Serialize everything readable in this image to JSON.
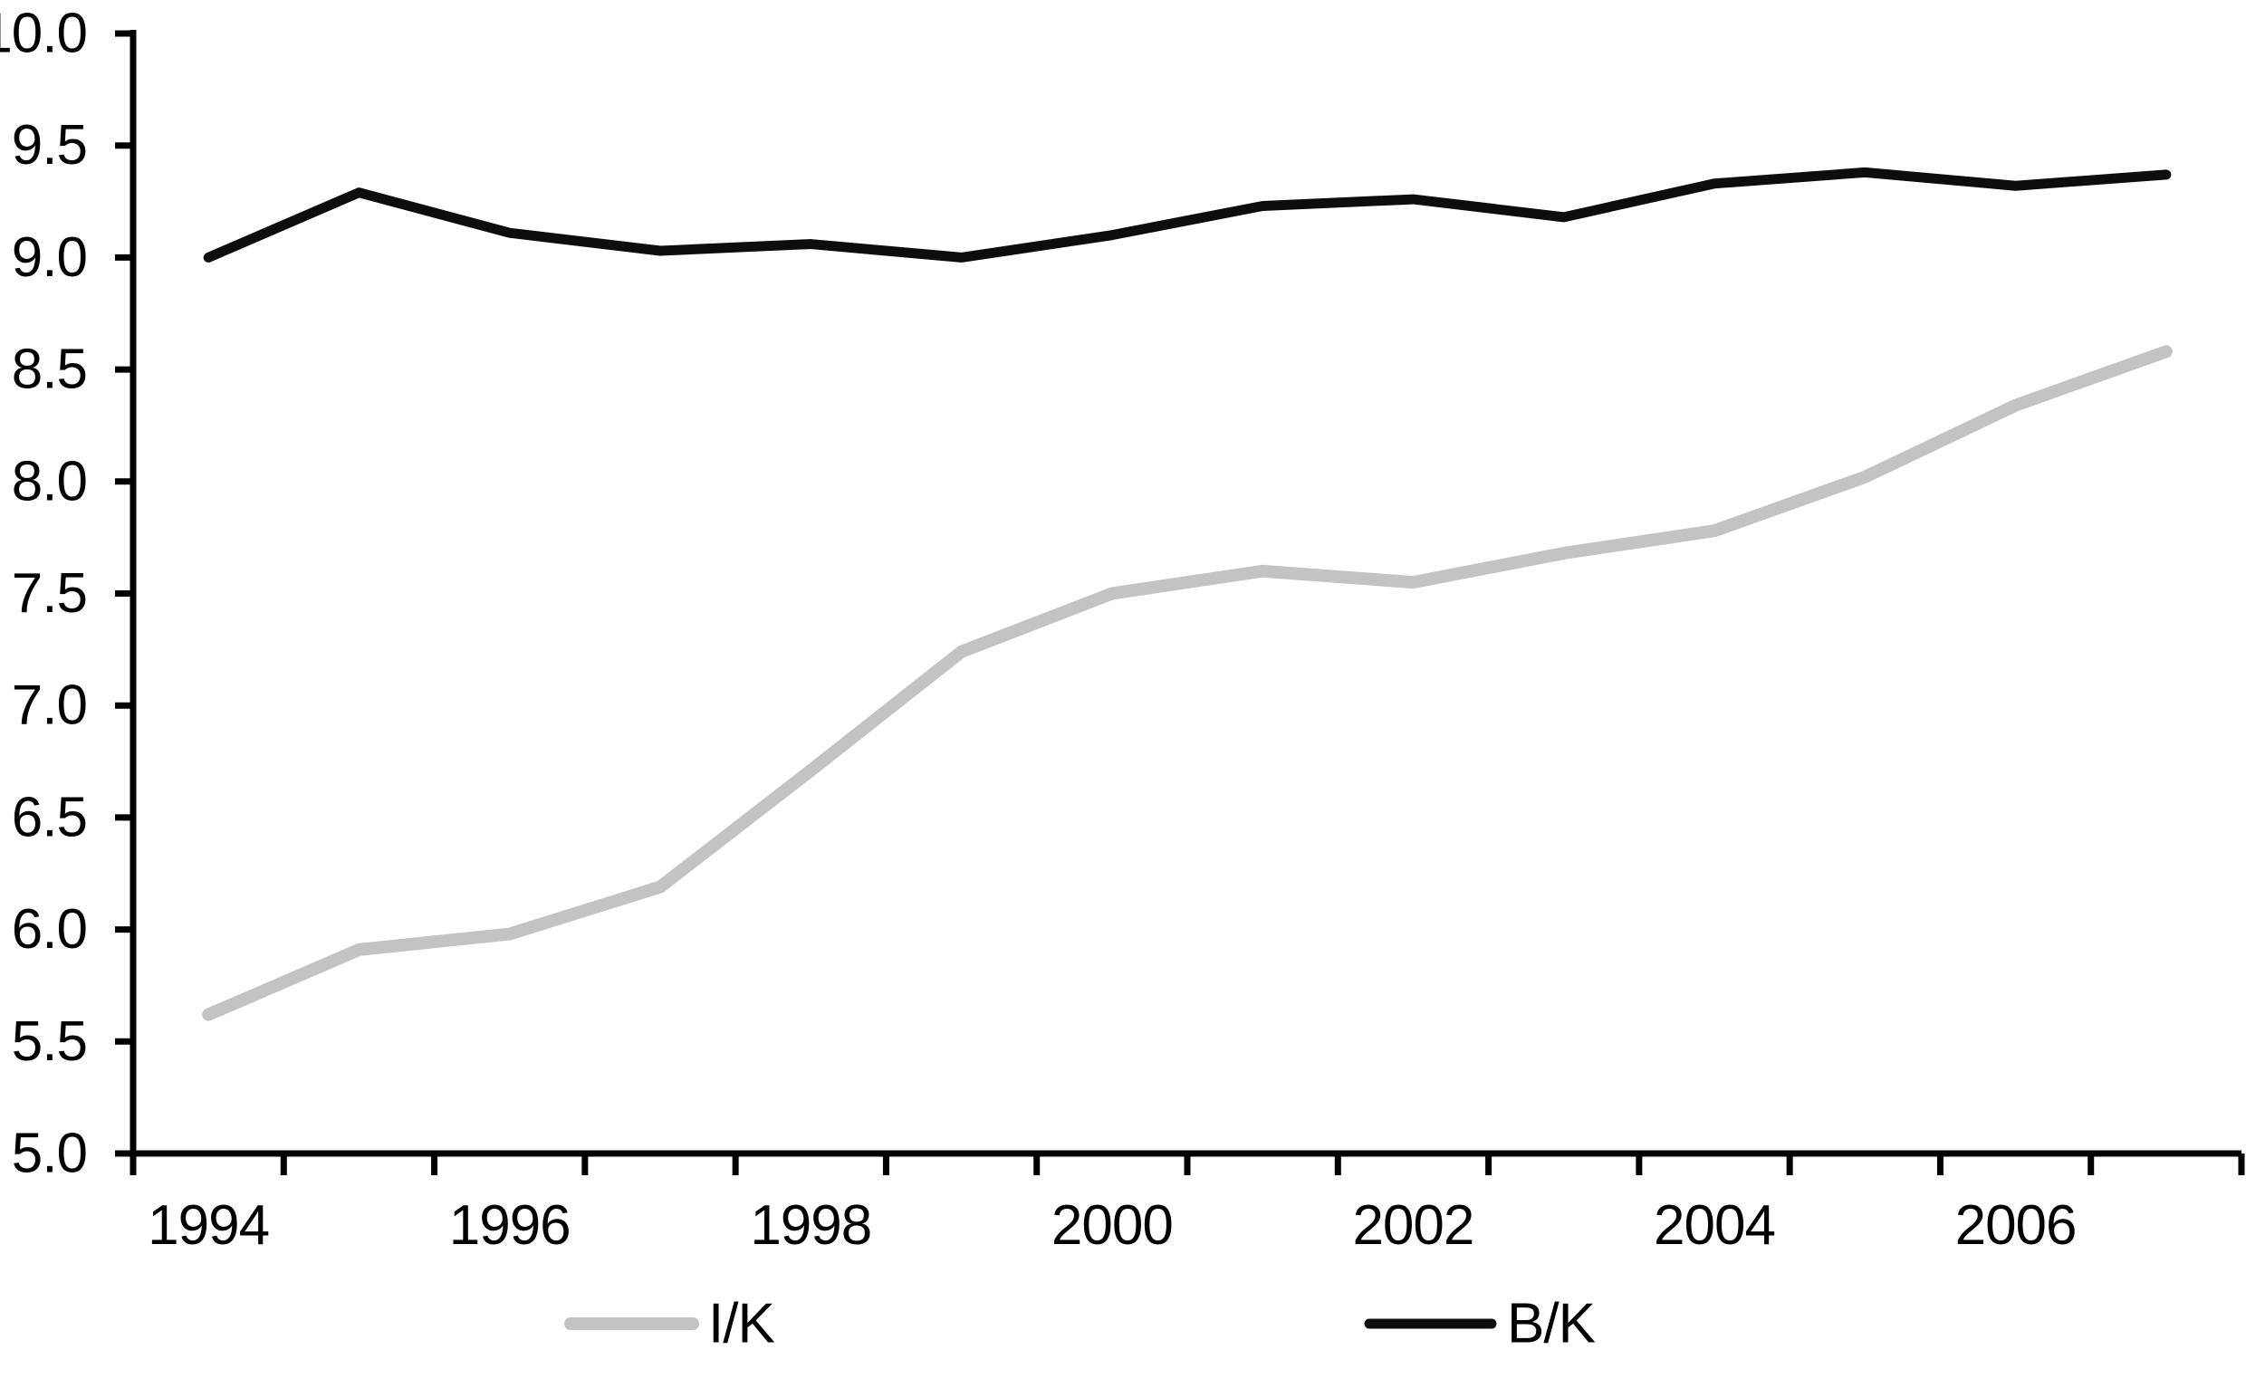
{
  "chart_data": {
    "type": "line",
    "title": "",
    "xlabel": "",
    "ylabel": "",
    "grid": false,
    "x": [
      1994,
      1995,
      1996,
      1997,
      1998,
      1999,
      2000,
      2001,
      2002,
      2003,
      2004,
      2005,
      2006,
      2007
    ],
    "series": [
      {
        "name": "I/K",
        "color": "#c3c3c3",
        "width": 14,
        "values": [
          5.62,
          5.91,
          5.98,
          6.19,
          6.71,
          7.24,
          7.5,
          7.6,
          7.55,
          7.68,
          7.78,
          8.02,
          8.34,
          8.58
        ]
      },
      {
        "name": "B/K",
        "color": "#0d0d0d",
        "width": 11,
        "values": [
          9.0,
          9.29,
          9.11,
          9.03,
          9.06,
          9.0,
          9.1,
          9.23,
          9.26,
          9.18,
          9.33,
          9.38,
          9.32,
          9.37
        ]
      }
    ],
    "ylim": [
      5.0,
      10.0
    ],
    "ytick_step": 0.5,
    "ytick_labels": [
      "5.0",
      "5.5",
      "6.0",
      "6.5",
      "7.0",
      "7.5",
      "8.0",
      "8.5",
      "9.0",
      "9.5",
      "10.0"
    ],
    "xtick_label_years": [
      1994,
      1996,
      1998,
      2000,
      2002,
      2004,
      2006
    ],
    "xtick_labels": [
      "1994",
      "1996",
      "1998",
      "2000",
      "2002",
      "2004",
      "2006"
    ],
    "legend_position": "bottom",
    "axis_color": "#000000"
  }
}
